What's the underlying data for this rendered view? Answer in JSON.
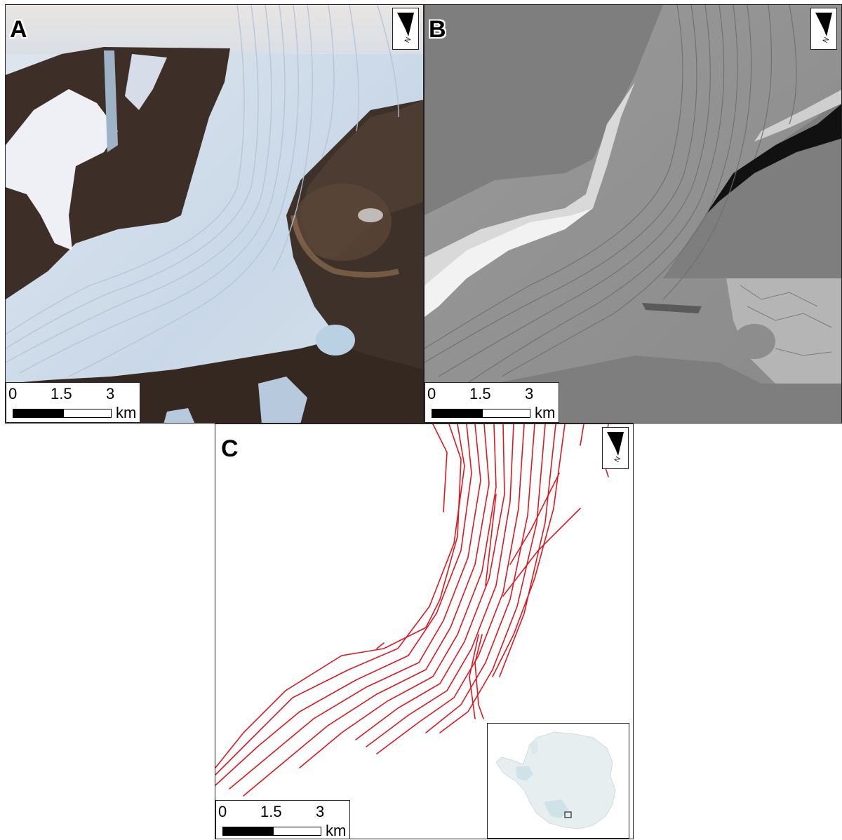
{
  "panels": {
    "a": {
      "letter": "A",
      "type": "satellite-imagery"
    },
    "b": {
      "letter": "B",
      "type": "hillshade-elevation"
    },
    "c": {
      "letter": "C",
      "type": "mapped-flowlines"
    }
  },
  "north_arrow": {
    "icon": "north-arrow-icon",
    "label": "N"
  },
  "scale_bar": {
    "ticks": [
      "0",
      "1.5",
      "3"
    ],
    "unit": "km"
  },
  "inset": {
    "icon": "antarctica-locator-icon",
    "region": "Antarctica"
  },
  "colors": {
    "flowline": "#e0171f",
    "ice": "#cfdbe9",
    "rock": "#3b2e27",
    "hillshade_background": "#7e7e7e",
    "inset_land": "#e6eef0",
    "inset_iceshelf": "#cfe2e8"
  }
}
